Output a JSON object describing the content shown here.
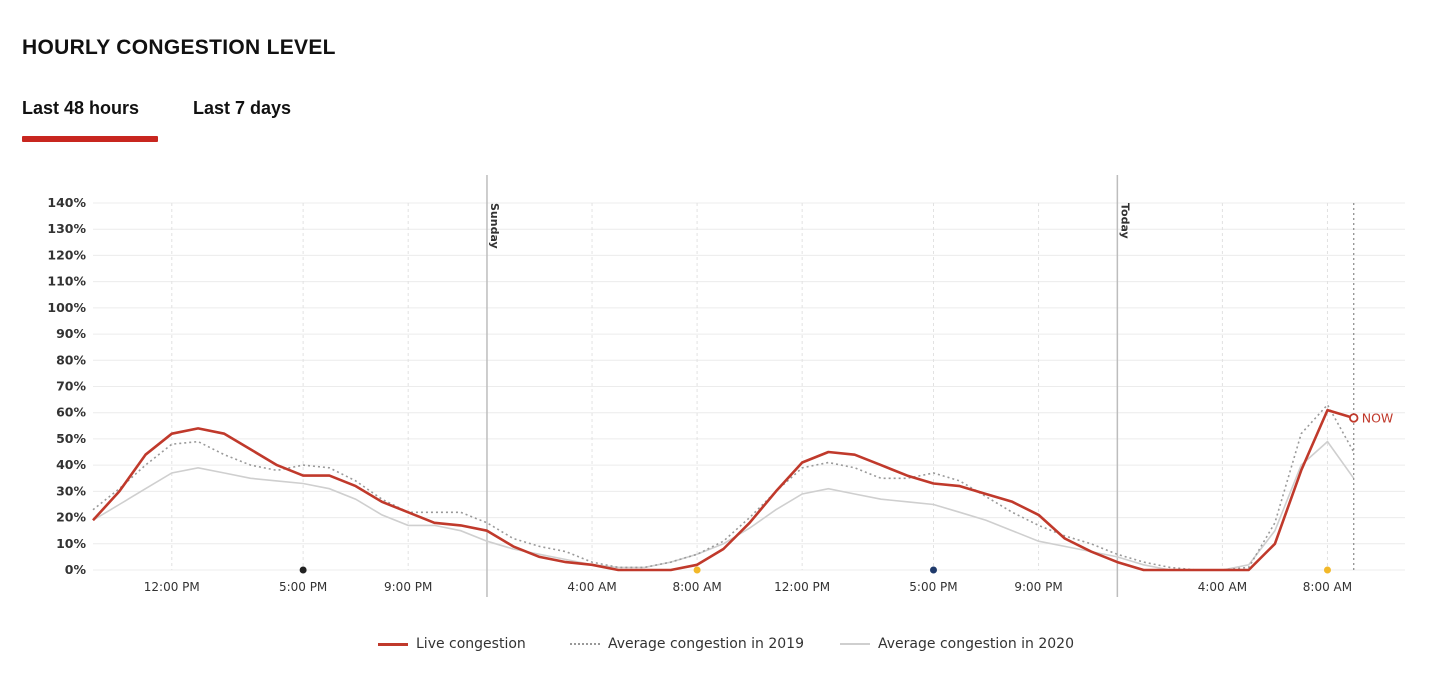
{
  "header": {
    "title": "HOURLY CONGESTION LEVEL"
  },
  "tabs": [
    {
      "label": "Last 48 hours",
      "active": true
    },
    {
      "label": "Last 7 days",
      "active": false
    }
  ],
  "colors": {
    "accent": "#c8261f",
    "live": "#c0392b",
    "avg2019": "#999999",
    "avg2020": "#cfcfcf"
  },
  "chart_data": {
    "type": "line",
    "title": "HOURLY CONGESTION LEVEL",
    "xlabel": "",
    "ylabel": "",
    "ylim": [
      0,
      140
    ],
    "yticks": [
      0,
      10,
      20,
      30,
      40,
      50,
      60,
      70,
      80,
      90,
      100,
      110,
      120,
      130,
      140
    ],
    "ytick_labels": [
      "0%",
      "10%",
      "20%",
      "30%",
      "40%",
      "50%",
      "60%",
      "70%",
      "80%",
      "90%",
      "100%",
      "110%",
      "120%",
      "130%",
      "140%"
    ],
    "x_unit": "hours elapsed since first point",
    "xlim": [
      0,
      49
    ],
    "xticks": [
      {
        "x": 3,
        "label": "12:00 PM"
      },
      {
        "x": 8,
        "label": "5:00 PM"
      },
      {
        "x": 12,
        "label": "9:00 PM"
      },
      {
        "x": 19,
        "label": "4:00 AM"
      },
      {
        "x": 23,
        "label": "8:00 AM"
      },
      {
        "x": 27,
        "label": "12:00 PM"
      },
      {
        "x": 32,
        "label": "5:00 PM"
      },
      {
        "x": 36,
        "label": "9:00 PM"
      },
      {
        "x": 43,
        "label": "4:00 AM"
      },
      {
        "x": 47,
        "label": "8:00 AM"
      }
    ],
    "day_markers": [
      {
        "x": 15,
        "label": "Sunday"
      },
      {
        "x": 39,
        "label": "Today"
      }
    ],
    "now": {
      "x": 48,
      "y": 58,
      "label": "NOW"
    },
    "event_dots": [
      {
        "x": 8,
        "color": "#222222"
      },
      {
        "x": 23,
        "color": "#f2b829"
      },
      {
        "x": 32,
        "color": "#1f3a6b"
      },
      {
        "x": 47,
        "color": "#f2b829"
      }
    ],
    "series": [
      {
        "name": "Live congestion",
        "style": "solid-thick",
        "points": [
          [
            0,
            19
          ],
          [
            1,
            30
          ],
          [
            2,
            44
          ],
          [
            3,
            52
          ],
          [
            4,
            54
          ],
          [
            5,
            52
          ],
          [
            6,
            46
          ],
          [
            7,
            40
          ],
          [
            8,
            36
          ],
          [
            9,
            36
          ],
          [
            10,
            32
          ],
          [
            11,
            26
          ],
          [
            12,
            22
          ],
          [
            13,
            18
          ],
          [
            14,
            17
          ],
          [
            15,
            15
          ],
          [
            16,
            9
          ],
          [
            17,
            5
          ],
          [
            18,
            3
          ],
          [
            19,
            2
          ],
          [
            20,
            0
          ],
          [
            21,
            0
          ],
          [
            22,
            0
          ],
          [
            23,
            2
          ],
          [
            24,
            8
          ],
          [
            25,
            18
          ],
          [
            26,
            30
          ],
          [
            27,
            41
          ],
          [
            28,
            45
          ],
          [
            29,
            44
          ],
          [
            30,
            40
          ],
          [
            31,
            36
          ],
          [
            32,
            33
          ],
          [
            33,
            32
          ],
          [
            34,
            29
          ],
          [
            35,
            26
          ],
          [
            36,
            21
          ],
          [
            37,
            12
          ],
          [
            38,
            7
          ],
          [
            39,
            3
          ],
          [
            40,
            0
          ],
          [
            41,
            0
          ],
          [
            42,
            0
          ],
          [
            43,
            0
          ],
          [
            44,
            0
          ],
          [
            45,
            10
          ],
          [
            46,
            38
          ],
          [
            47,
            61
          ],
          [
            48,
            58
          ]
        ]
      },
      {
        "name": "Average congestion in 2019",
        "style": "dotted",
        "points": [
          [
            0,
            23
          ],
          [
            1,
            31
          ],
          [
            2,
            40
          ],
          [
            3,
            48
          ],
          [
            4,
            49
          ],
          [
            5,
            44
          ],
          [
            6,
            40
          ],
          [
            7,
            38
          ],
          [
            8,
            40
          ],
          [
            9,
            39
          ],
          [
            10,
            34
          ],
          [
            11,
            27
          ],
          [
            12,
            22
          ],
          [
            13,
            22
          ],
          [
            14,
            22
          ],
          [
            15,
            18
          ],
          [
            16,
            12
          ],
          [
            17,
            9
          ],
          [
            18,
            7
          ],
          [
            19,
            3
          ],
          [
            20,
            1
          ],
          [
            21,
            1
          ],
          [
            22,
            3
          ],
          [
            23,
            6
          ],
          [
            24,
            11
          ],
          [
            25,
            20
          ],
          [
            26,
            30
          ],
          [
            27,
            39
          ],
          [
            28,
            41
          ],
          [
            29,
            39
          ],
          [
            30,
            35
          ],
          [
            31,
            35
          ],
          [
            32,
            37
          ],
          [
            33,
            34
          ],
          [
            34,
            28
          ],
          [
            35,
            22
          ],
          [
            36,
            17
          ],
          [
            37,
            13
          ],
          [
            38,
            10
          ],
          [
            39,
            6
          ],
          [
            40,
            3
          ],
          [
            41,
            1
          ],
          [
            42,
            0
          ],
          [
            43,
            0
          ],
          [
            44,
            1
          ],
          [
            45,
            18
          ],
          [
            46,
            52
          ],
          [
            47,
            63
          ],
          [
            48,
            45
          ]
        ]
      },
      {
        "name": "Average congestion in 2020",
        "style": "solid-light",
        "points": [
          [
            0,
            19
          ],
          [
            1,
            25
          ],
          [
            2,
            31
          ],
          [
            3,
            37
          ],
          [
            4,
            39
          ],
          [
            5,
            37
          ],
          [
            6,
            35
          ],
          [
            7,
            34
          ],
          [
            8,
            33
          ],
          [
            9,
            31
          ],
          [
            10,
            27
          ],
          [
            11,
            21
          ],
          [
            12,
            17
          ],
          [
            13,
            17
          ],
          [
            14,
            15
          ],
          [
            15,
            11
          ],
          [
            16,
            8
          ],
          [
            17,
            6
          ],
          [
            18,
            4
          ],
          [
            19,
            2
          ],
          [
            20,
            1
          ],
          [
            21,
            1
          ],
          [
            22,
            3
          ],
          [
            23,
            6
          ],
          [
            24,
            10
          ],
          [
            25,
            16
          ],
          [
            26,
            23
          ],
          [
            27,
            29
          ],
          [
            28,
            31
          ],
          [
            29,
            29
          ],
          [
            30,
            27
          ],
          [
            31,
            26
          ],
          [
            32,
            25
          ],
          [
            33,
            22
          ],
          [
            34,
            19
          ],
          [
            35,
            15
          ],
          [
            36,
            11
          ],
          [
            37,
            9
          ],
          [
            38,
            7
          ],
          [
            39,
            5
          ],
          [
            40,
            2
          ],
          [
            41,
            0
          ],
          [
            42,
            0
          ],
          [
            43,
            0
          ],
          [
            44,
            2
          ],
          [
            45,
            15
          ],
          [
            46,
            40
          ],
          [
            47,
            49
          ],
          [
            48,
            35
          ]
        ]
      }
    ]
  },
  "legend": {
    "live": "Live congestion",
    "avg2019": "Average congestion in 2019",
    "avg2020": "Average congestion in 2020"
  }
}
